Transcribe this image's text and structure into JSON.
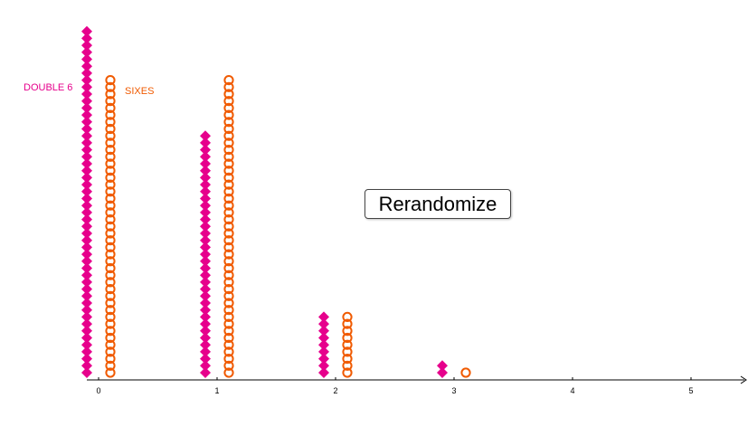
{
  "colors": {
    "double_six": "#e6008c",
    "sixes": "#f05a00",
    "axis": "#000000"
  },
  "legend": {
    "double_six_label": "DOUBLE 6",
    "sixes_label": "SIXES"
  },
  "button": {
    "label": "Rerandomize"
  },
  "chart_data": {
    "type": "scatter",
    "subtype": "dot plot",
    "xticks": [
      "0",
      "1",
      "2",
      "3",
      "4",
      "5"
    ],
    "xlim": [
      0,
      5.5
    ],
    "series": [
      {
        "name": "DOUBLE 6",
        "marker": "filled-diamond",
        "color": "#e6008c",
        "points": [
          {
            "x": 0,
            "count": 50
          },
          {
            "x": 1,
            "count": 35
          },
          {
            "x": 2,
            "count": 9
          },
          {
            "x": 3,
            "count": 2
          }
        ]
      },
      {
        "name": "SIXES",
        "marker": "hollow-circle",
        "color": "#f05a00",
        "points": [
          {
            "x": 0,
            "count": 43
          },
          {
            "x": 1,
            "count": 43
          },
          {
            "x": 2,
            "count": 9
          },
          {
            "x": 3,
            "count": 1
          }
        ]
      }
    ]
  }
}
